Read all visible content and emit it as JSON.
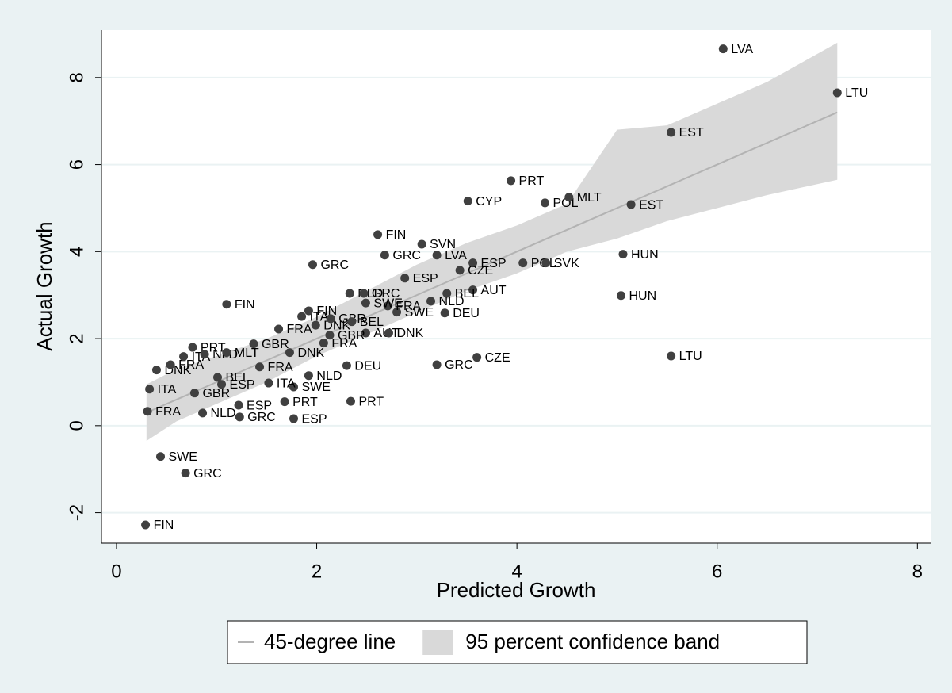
{
  "chart_data": {
    "type": "scatter",
    "x_label": "Predicted Growth",
    "y_label": "Actual Growth",
    "xlim": [
      -0.15,
      8.14
    ],
    "ylim": [
      -2.7,
      9.09
    ],
    "xticks": [
      0,
      2,
      4,
      6,
      8
    ],
    "yticks": [
      -2,
      0,
      2,
      4,
      6,
      8
    ],
    "grid": true,
    "legend_position": "bottom",
    "series": [
      {
        "name": "45-degree line",
        "type": "line",
        "color": "#b3b3b3",
        "x": [
          0.3,
          7.2
        ],
        "values": [
          0.3,
          7.2
        ]
      },
      {
        "name": "95 percent confidence band",
        "type": "band",
        "color": "#d9d9d9",
        "x": [
          0.3,
          0.6,
          1.0,
          1.5,
          2.0,
          2.5,
          3.0,
          3.5,
          4.0,
          4.5,
          5.0,
          5.5,
          6.0,
          6.5,
          7.2
        ],
        "lower": [
          -0.35,
          0.1,
          0.5,
          1.0,
          1.6,
          2.1,
          2.6,
          3.1,
          3.5,
          4.0,
          4.3,
          4.7,
          5.0,
          5.3,
          5.65
        ],
        "upper": [
          0.95,
          1.3,
          1.6,
          2.0,
          2.5,
          3.1,
          3.7,
          4.2,
          4.6,
          5.1,
          6.8,
          6.9,
          7.4,
          7.9,
          8.8
        ]
      },
      {
        "type": "points",
        "color": "#404040",
        "x": [
          6.06,
          7.2,
          5.54,
          3.94,
          3.51,
          4.28,
          4.52,
          5.14,
          2.61,
          3.05,
          1.96,
          2.68,
          3.2,
          3.56,
          4.06,
          4.29,
          5.06,
          3.43,
          2.88,
          3.56,
          3.3,
          3.14,
          5.04,
          3.28,
          2.8,
          1.1,
          1.62,
          2.49,
          2.72,
          3.2,
          3.6,
          5.54,
          2.34,
          1.77,
          1.23,
          0.86,
          1.22,
          1.68,
          0.31,
          0.44,
          0.69,
          0.29,
          0.33,
          0.78,
          0.4,
          0.54,
          0.76,
          1.37,
          1.77,
          1.52,
          2.3,
          1.92,
          2.13,
          1.85,
          1.92,
          2.33,
          1.99,
          2.47,
          2.71,
          2.49,
          2.14,
          2.35,
          2.07,
          1.73,
          1.43,
          1.01,
          1.05,
          0.67,
          0.88,
          1.1
        ],
        "values": [
          8.66,
          7.65,
          6.74,
          5.63,
          5.16,
          5.12,
          5.25,
          5.08,
          4.39,
          4.17,
          3.7,
          3.92,
          3.92,
          3.74,
          3.74,
          3.74,
          3.94,
          3.57,
          3.39,
          3.12,
          3.04,
          2.86,
          2.99,
          2.59,
          2.61,
          2.79,
          2.22,
          2.13,
          2.13,
          1.4,
          1.57,
          1.6,
          0.56,
          0.16,
          0.2,
          0.29,
          0.47,
          0.55,
          0.33,
          -0.71,
          -1.09,
          -2.28,
          0.84,
          0.75,
          1.28,
          1.4,
          1.8,
          1.88,
          0.89,
          0.98,
          1.38,
          1.15,
          2.08,
          2.51,
          2.64,
          3.04,
          2.31,
          3.04,
          2.75,
          2.82,
          2.46,
          2.39,
          1.9,
          1.68,
          1.35,
          1.11,
          0.95,
          1.59,
          1.64,
          1.68
        ],
        "labels": [
          "LVA",
          "LTU",
          "EST",
          "PRT",
          "CYP",
          "POL",
          "MLT",
          "EST",
          "FIN",
          "SVN",
          "GRC",
          "GRC",
          "LVA",
          "ESP",
          "POL",
          "SVK",
          "HUN",
          "CZE",
          "ESP",
          "AUT",
          "BEL",
          "NLD",
          "HUN",
          "DEU",
          "SWE",
          "FIN",
          "FRA",
          "AUT",
          "DNK",
          "GRC",
          "CZE",
          "LTU",
          "PRT",
          "ESP",
          "GRC",
          "NLD",
          "ESP",
          "PRT",
          "FRA",
          "SWE",
          "GRC",
          "FIN",
          "ITA",
          "GBR",
          "DNK",
          "FRA",
          "PRT",
          "GBR",
          "SWE",
          "ITA",
          "DEU",
          "NLD",
          "GBR",
          "ITA",
          "FIN",
          "NLD",
          "DNK",
          "GRC",
          "FRA",
          "SWE",
          "GBR",
          "BEL",
          "FRA",
          "DNK",
          "FRA",
          "BEL",
          "ESP",
          "ITA",
          "NLD",
          "MLT"
        ]
      }
    ]
  }
}
